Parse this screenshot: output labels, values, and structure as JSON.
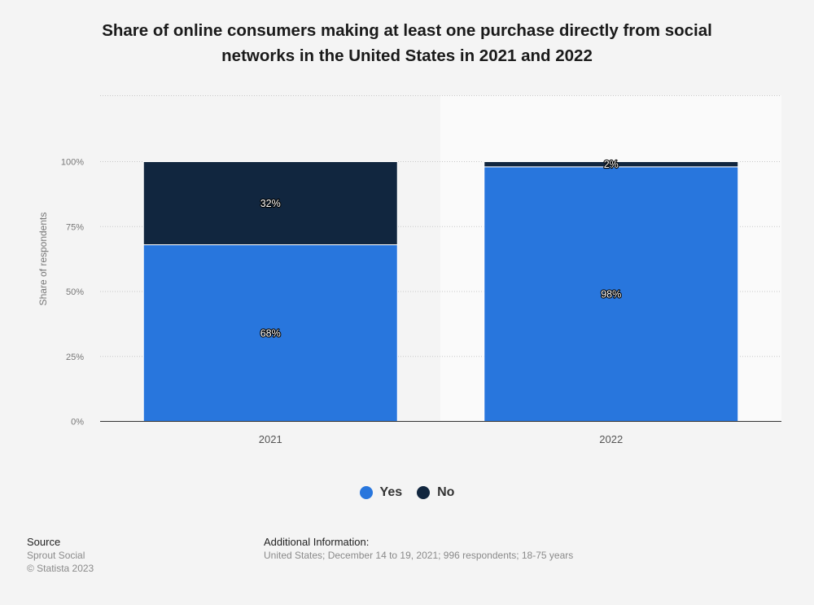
{
  "chart_data": {
    "type": "bar",
    "stacked": true,
    "title_lines": [
      "Share of online consumers making at least one purchase directly from social",
      "networks in the United States in 2021 and 2022"
    ],
    "ylabel": "Share of respondents",
    "xlabel": "",
    "categories": [
      "2021",
      "2022"
    ],
    "ylim": [
      0,
      100
    ],
    "yticks": [
      "0%",
      "25%",
      "50%",
      "75%",
      "100%"
    ],
    "yticks_values": [
      0,
      25,
      50,
      75,
      100
    ],
    "grid": true,
    "legend_position": "bottom",
    "series": [
      {
        "name": "Yes",
        "values": [
          68,
          98
        ],
        "labels": [
          "68%",
          "98%"
        ],
        "color": "#2876dd"
      },
      {
        "name": "No",
        "values": [
          32,
          2
        ],
        "labels": [
          "32%",
          "2%"
        ],
        "color": "#11263f"
      }
    ]
  },
  "source": {
    "heading": "Source",
    "lines": [
      "Sprout Social",
      "© Statista 2023"
    ]
  },
  "additional_info": {
    "heading": "Additional Information:",
    "text": "United States; December 14 to 19, 2021; 996 respondents; 18-75 years"
  }
}
